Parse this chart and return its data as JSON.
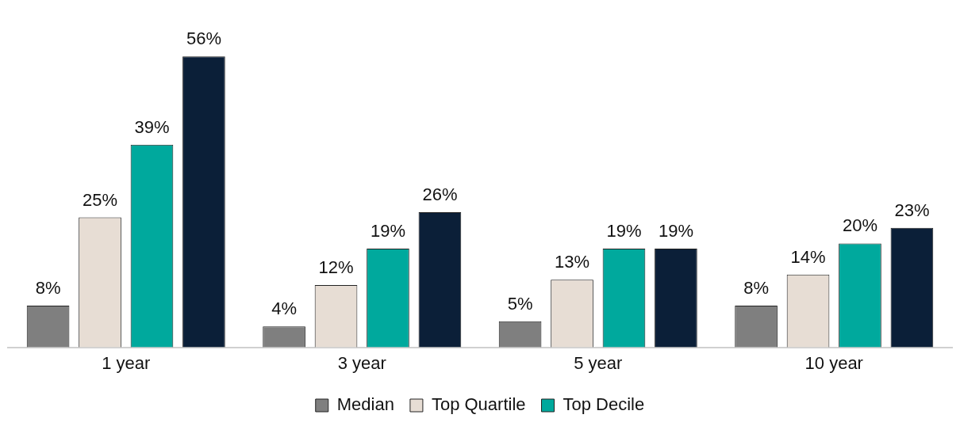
{
  "chart_data": {
    "type": "bar",
    "categories": [
      "1 year",
      "3 year",
      "5 year",
      "10 year"
    ],
    "series": [
      {
        "name": "Median",
        "color": "#7f7f7f",
        "values": [
          8,
          4,
          5,
          8
        ],
        "value_labels": [
          "8%",
          "4%",
          "5%",
          "8%"
        ]
      },
      {
        "name": "Top Quartile",
        "color": "#e7ddd4",
        "values": [
          25,
          12,
          13,
          14
        ],
        "value_labels": [
          "25%",
          "12%",
          "13%",
          "14%"
        ]
      },
      {
        "name": "Top Decile",
        "color": "#00a99d",
        "values": [
          39,
          19,
          19,
          20
        ],
        "value_labels": [
          "39%",
          "19%",
          "19%",
          "20%"
        ]
      },
      {
        "color": "#0b1f38",
        "values": [
          56,
          26,
          19,
          23
        ],
        "value_labels": [
          "56%",
          "26%",
          "19%",
          "23%"
        ]
      }
    ],
    "legend": "bottom",
    "grid": false
  }
}
